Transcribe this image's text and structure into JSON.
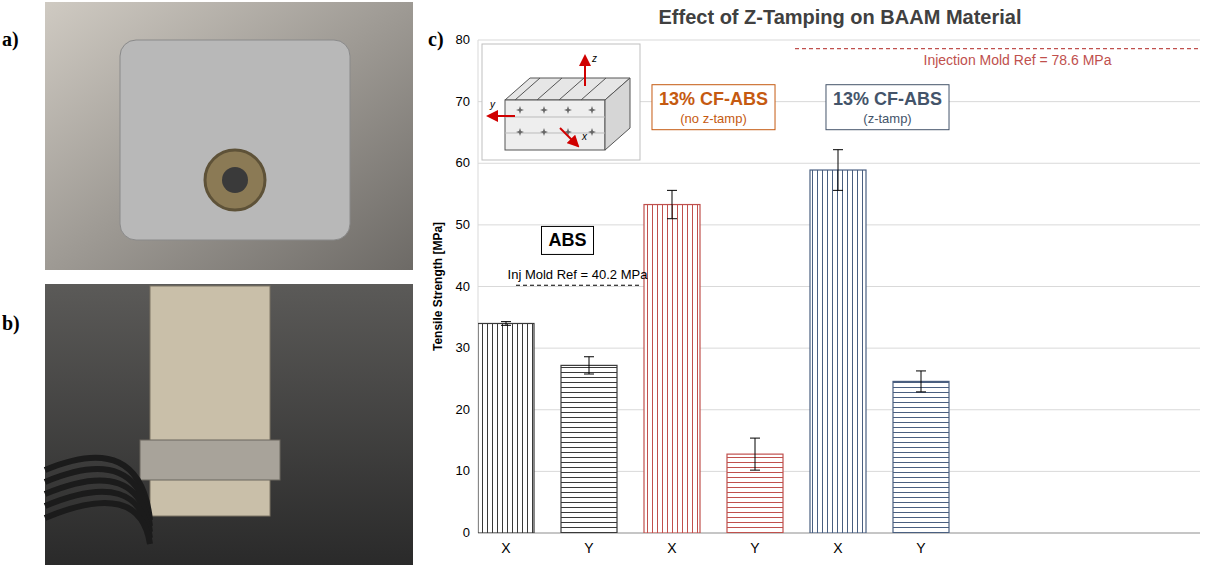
{
  "panel_labels": [
    "a)",
    "b)",
    "c)"
  ],
  "chart_data": {
    "type": "bar",
    "title": "Effect of Z-Tamping on BAAM Material",
    "y_label": "Tensile Strength [MPa]",
    "categories": [
      "X",
      "Y",
      "X",
      "Y",
      "X",
      "Y"
    ],
    "values": [
      34.0,
      27.2,
      53.3,
      12.8,
      58.9,
      24.6
    ],
    "errors": [
      0.3,
      1.4,
      2.3,
      2.6,
      3.3,
      1.7
    ],
    "colors": [
      "#3a3a3a",
      "#3a3a3a",
      "#c0504d",
      "#c0504d",
      "#4a5f80",
      "#4a5f80"
    ],
    "ylim": [
      0,
      80
    ],
    "yticks": [
      0,
      10,
      20,
      30,
      40,
      50,
      60,
      70,
      80
    ],
    "grid": true,
    "groups": [
      {
        "name": "ABS",
        "color": "#000000"
      },
      {
        "name": "13% CF-ABS",
        "note": "(no z-tamp)",
        "color": "#c55a11"
      },
      {
        "name": "13% CF-ABS",
        "note": "(z-tamp)",
        "color": "#44546a"
      }
    ],
    "reference_lines": [
      {
        "label": "Inj Mold Ref = 40.2 MPa",
        "value": 40.2,
        "color": "#000000"
      },
      {
        "label": "Injection Mold Ref = 78.6 MPa",
        "value": 78.6,
        "color": "#c0504d"
      }
    ],
    "inset_labels": [
      "z",
      "y",
      "x"
    ]
  }
}
